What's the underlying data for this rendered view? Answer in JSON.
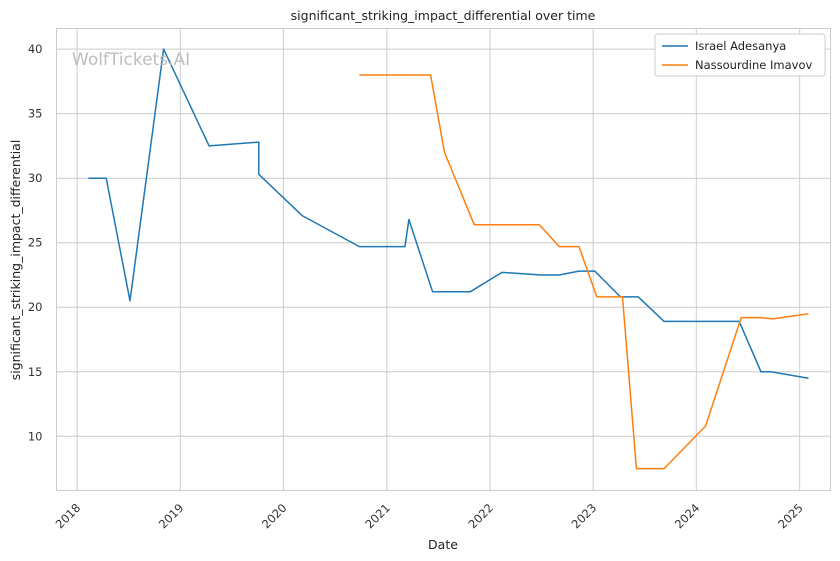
{
  "chart_data": {
    "type": "line",
    "title": "significant_striking_impact_differential over time",
    "xlabel": "Date",
    "ylabel": "significant_striking_impact_differential",
    "watermark": "WolfTickets.AI",
    "x_ticks": [
      "2018",
      "2019",
      "2020",
      "2021",
      "2022",
      "2023",
      "2024",
      "2025"
    ],
    "y_ticks": [
      10,
      15,
      20,
      25,
      30,
      35,
      40
    ],
    "xlim": [
      "2017-10-20",
      "2025-04-20"
    ],
    "ylim": [
      5.8,
      41.6
    ],
    "grid": true,
    "legend_position": "top-right",
    "series": [
      {
        "name": "Israel Adesanya",
        "color": "#1f77b4",
        "points": [
          [
            "2018-02-10",
            30.0
          ],
          [
            "2018-04-14",
            30.0
          ],
          [
            "2018-07-07",
            20.5
          ],
          [
            "2018-11-03",
            40.0
          ],
          [
            "2019-04-13",
            32.5
          ],
          [
            "2019-10-06",
            32.8
          ],
          [
            "2019-10-06",
            30.3
          ],
          [
            "2020-03-07",
            27.1
          ],
          [
            "2020-09-26",
            24.7
          ],
          [
            "2021-03-06",
            24.7
          ],
          [
            "2021-03-20",
            26.8
          ],
          [
            "2021-06-12",
            21.2
          ],
          [
            "2021-10-23",
            21.2
          ],
          [
            "2022-02-12",
            22.7
          ],
          [
            "2022-07-02",
            22.5
          ],
          [
            "2022-09-03",
            22.5
          ],
          [
            "2022-11-12",
            22.8
          ],
          [
            "2023-01-07",
            22.8
          ],
          [
            "2023-04-08",
            20.8
          ],
          [
            "2023-06-10",
            20.8
          ],
          [
            "2023-09-09",
            18.9
          ],
          [
            "2024-01-20",
            18.9
          ],
          [
            "2024-06-01",
            18.9
          ],
          [
            "2024-08-17",
            15.0
          ],
          [
            "2024-09-21",
            15.0
          ],
          [
            "2025-02-01",
            14.5
          ]
        ]
      },
      {
        "name": "Nassourdine Imavov",
        "color": "#ff7f0e",
        "points": [
          [
            "2020-09-26",
            38.0
          ],
          [
            "2021-06-05",
            38.0
          ],
          [
            "2021-07-24",
            32.0
          ],
          [
            "2021-11-06",
            26.4
          ],
          [
            "2022-06-25",
            26.4
          ],
          [
            "2022-09-03",
            24.7
          ],
          [
            "2022-11-12",
            24.7
          ],
          [
            "2023-01-14",
            20.8
          ],
          [
            "2023-04-15",
            20.8
          ],
          [
            "2023-06-03",
            7.5
          ],
          [
            "2023-09-09",
            7.5
          ],
          [
            "2024-02-03",
            10.8
          ],
          [
            "2024-06-08",
            19.2
          ],
          [
            "2024-08-17",
            19.2
          ],
          [
            "2024-09-28",
            19.1
          ],
          [
            "2025-02-01",
            19.5
          ]
        ]
      }
    ]
  }
}
